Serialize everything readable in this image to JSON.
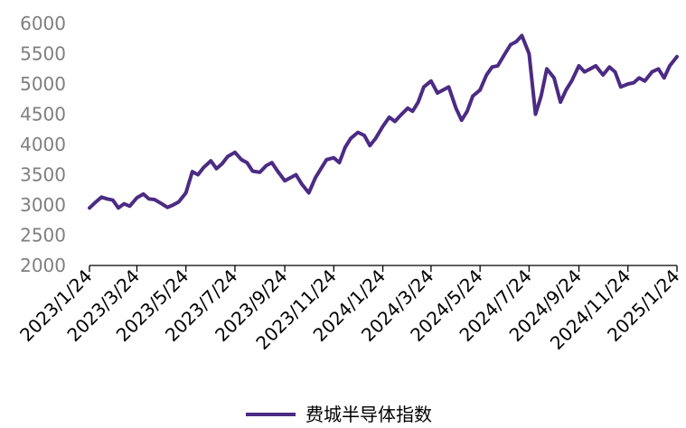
{
  "chart_data": {
    "type": "line",
    "title": "",
    "xlabel": "",
    "ylabel": "",
    "ylim": [
      2000,
      6000
    ],
    "y_ticks": [
      "2000",
      "2500",
      "3000",
      "3500",
      "4000",
      "4500",
      "5000",
      "5500",
      "6000"
    ],
    "x_ticks": [
      "2023/1/24",
      "2023/3/24",
      "2023/5/24",
      "2023/7/24",
      "2023/9/24",
      "2023/11/24",
      "2024/1/24",
      "2024/3/24",
      "2024/5/24",
      "2024/7/24",
      "2024/9/24",
      "2024/11/24",
      "2025/1/24"
    ],
    "grid": false,
    "legend_position": "bottom",
    "series": [
      {
        "name": "费城半导体指数",
        "color": "#4b2b83",
        "x": [
          "2023/1/24",
          "2023/2/1",
          "2023/2/8",
          "2023/2/15",
          "2023/2/22",
          "2023/3/1",
          "2023/3/8",
          "2023/3/15",
          "2023/3/24",
          "2023/4/1",
          "2023/4/8",
          "2023/4/15",
          "2023/4/24",
          "2023/5/1",
          "2023/5/8",
          "2023/5/15",
          "2023/5/24",
          "2023/6/1",
          "2023/6/8",
          "2023/6/15",
          "2023/6/24",
          "2023/7/1",
          "2023/7/8",
          "2023/7/15",
          "2023/7/24",
          "2023/8/1",
          "2023/8/8",
          "2023/8/15",
          "2023/8/24",
          "2023/9/1",
          "2023/9/8",
          "2023/9/15",
          "2023/9/24",
          "2023/10/1",
          "2023/10/8",
          "2023/10/15",
          "2023/10/24",
          "2023/11/1",
          "2023/11/8",
          "2023/11/15",
          "2023/11/24",
          "2023/12/1",
          "2023/12/8",
          "2023/12/15",
          "2023/12/24",
          "2024/1/1",
          "2024/1/8",
          "2024/1/15",
          "2024/1/24",
          "2024/2/1",
          "2024/2/8",
          "2024/2/15",
          "2024/2/24",
          "2024/3/1",
          "2024/3/8",
          "2024/3/15",
          "2024/3/24",
          "2024/4/1",
          "2024/4/8",
          "2024/4/15",
          "2024/4/24",
          "2024/5/1",
          "2024/5/8",
          "2024/5/15",
          "2024/5/24",
          "2024/6/1",
          "2024/6/8",
          "2024/6/15",
          "2024/6/24",
          "2024/7/1",
          "2024/7/8",
          "2024/7/15",
          "2024/7/24",
          "2024/8/1",
          "2024/8/8",
          "2024/8/15",
          "2024/8/24",
          "2024/9/1",
          "2024/9/8",
          "2024/9/15",
          "2024/9/24",
          "2024/10/1",
          "2024/10/8",
          "2024/10/15",
          "2024/10/24",
          "2024/11/1",
          "2024/11/8",
          "2024/11/15",
          "2024/11/24",
          "2024/12/1",
          "2024/12/8",
          "2024/12/15",
          "2024/12/24",
          "2025/1/1",
          "2025/1/8",
          "2025/1/15",
          "2025/1/24"
        ],
        "values": [
          2950,
          3050,
          3130,
          3100,
          3080,
          2950,
          3020,
          2980,
          3120,
          3180,
          3100,
          3090,
          3020,
          2960,
          3000,
          3050,
          3200,
          3550,
          3500,
          3620,
          3730,
          3600,
          3680,
          3800,
          3870,
          3750,
          3700,
          3560,
          3540,
          3650,
          3700,
          3560,
          3400,
          3450,
          3500,
          3350,
          3200,
          3450,
          3600,
          3750,
          3780,
          3700,
          3950,
          4100,
          4200,
          4150,
          3980,
          4100,
          4300,
          4450,
          4380,
          4480,
          4600,
          4550,
          4700,
          4950,
          5050,
          4850,
          4900,
          4950,
          4600,
          4400,
          4550,
          4800,
          4900,
          5150,
          5280,
          5300,
          5500,
          5650,
          5700,
          5800,
          5500,
          4500,
          4800,
          5250,
          5100,
          4700,
          4900,
          5050,
          5300,
          5200,
          5250,
          5300,
          5150,
          5280,
          5200,
          4950,
          5000,
          5020,
          5100,
          5050,
          5200,
          5250,
          5100,
          5300,
          5450
        ]
      }
    ]
  }
}
